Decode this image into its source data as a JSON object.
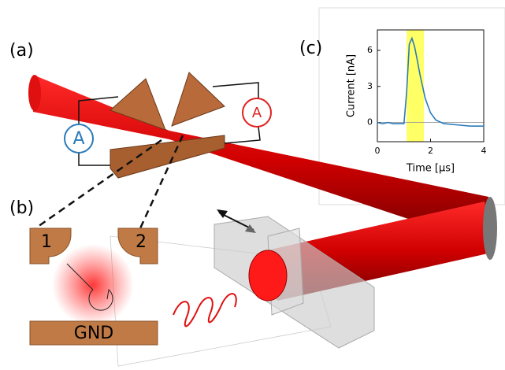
{
  "panels": {
    "a": "(a)",
    "b": "(b)",
    "c": "(c)"
  },
  "labels": {
    "ammeter_left": "A",
    "ammeter_right": "A",
    "electrode_1": "1",
    "electrode_2": "2",
    "ground": "GND"
  },
  "chart_data": {
    "type": "line",
    "xlabel": "Time [µs]",
    "ylabel": "Current [nA]",
    "x": [
      0,
      0.2,
      0.4,
      0.6,
      0.8,
      1.0,
      1.1,
      1.2,
      1.3,
      1.4,
      1.5,
      1.6,
      1.7,
      1.8,
      2.0,
      2.2,
      2.5,
      3.0,
      3.5,
      4.0
    ],
    "series": [
      {
        "color": "#2b7bba",
        "values": [
          0,
          -0.1,
          0,
          -0.1,
          -0.1,
          -0.1,
          2.5,
          6.5,
          7.0,
          6.3,
          5.2,
          4.0,
          3.0,
          2.0,
          0.8,
          0.2,
          -0.1,
          -0.2,
          -0.3,
          -0.3
        ]
      }
    ],
    "xlim": [
      0,
      4
    ],
    "ylim": [
      -1.6,
      7.7
    ],
    "xticks": [
      0,
      2,
      4
    ],
    "yticks": [
      0,
      3,
      6
    ],
    "highlight": {
      "range": [
        1.1,
        1.75
      ],
      "color": "#ffff66"
    }
  }
}
